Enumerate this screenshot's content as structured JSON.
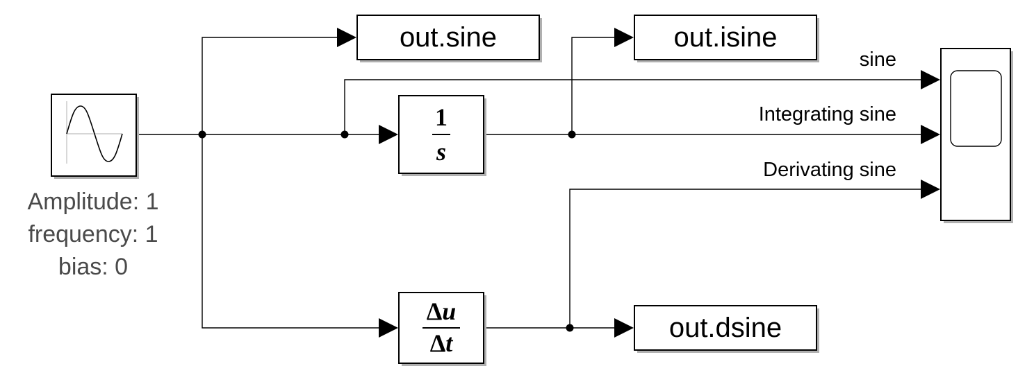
{
  "sine_source": {
    "params": [
      "Amplitude: 1",
      "frequency: 1",
      "bias: 0"
    ]
  },
  "outputs": {
    "sine": "out.sine",
    "isine": "out.isine",
    "dsine": "out.dsine"
  },
  "integrator": {
    "numerator": "1",
    "denominator": "s"
  },
  "derivative": {
    "num_delta": "Δ",
    "num_var": "u",
    "den_delta": "Δ",
    "den_var": "t"
  },
  "scope": {
    "signal_labels": [
      "sine",
      "Integrating sine",
      "Derivating sine"
    ]
  },
  "icons": [
    "sine-wave-icon",
    "scope-screen-icon"
  ]
}
